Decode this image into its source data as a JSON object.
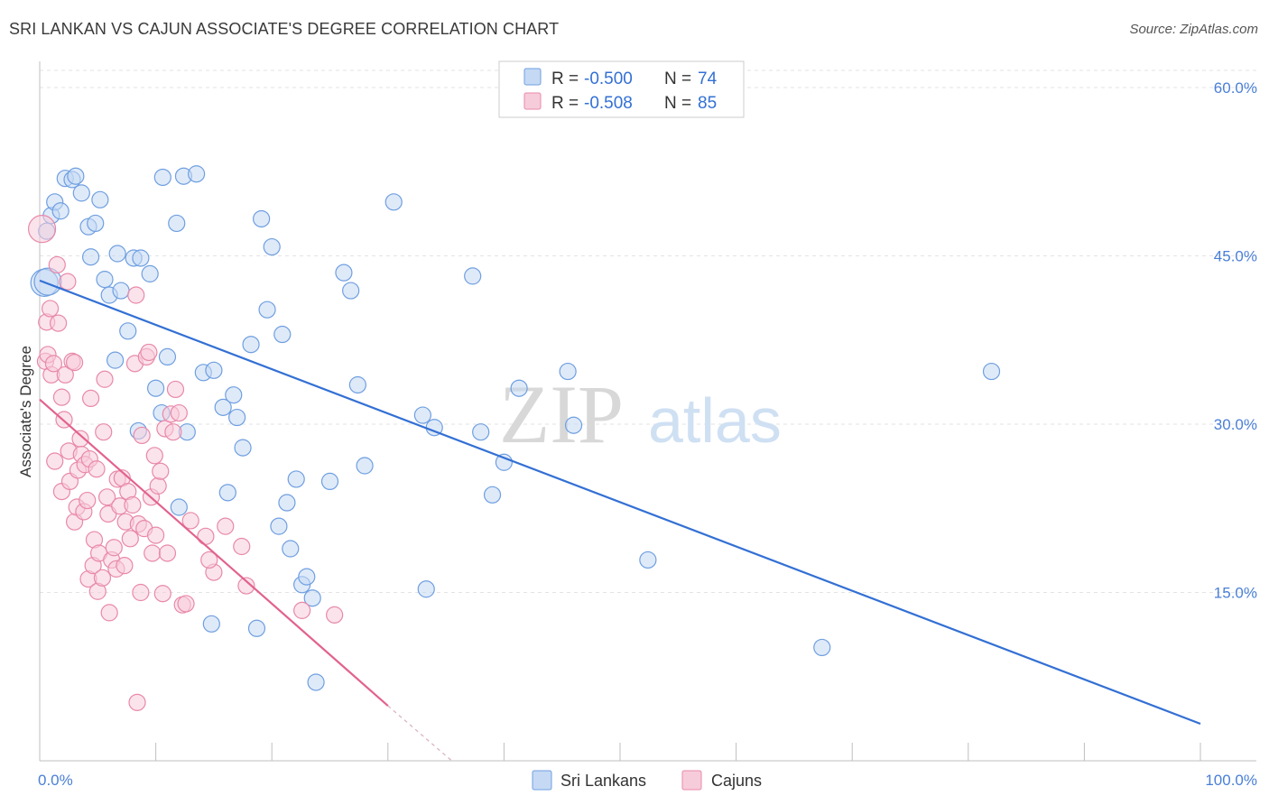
{
  "title": "SRI LANKAN VS CAJUN ASSOCIATE'S DEGREE CORRELATION CHART",
  "source": "Source: ZipAtlas.com",
  "watermark": {
    "zip": "ZIP",
    "atlas": "atlas"
  },
  "chart_data": {
    "type": "scatter",
    "title": "SRI LANKAN VS CAJUN ASSOCIATE'S DEGREE CORRELATION CHART",
    "xlabel": "",
    "ylabel": "Associate's Degree",
    "xlim": [
      0,
      100
    ],
    "ylim": [
      0,
      63
    ],
    "x_tick_labels": [
      {
        "value": 0,
        "label": "0.0%"
      },
      {
        "value": 100,
        "label": "100.0%"
      }
    ],
    "y_tick_labels": [
      {
        "value": 15,
        "label": "15.0%"
      },
      {
        "value": 30,
        "label": "30.0%"
      },
      {
        "value": 45,
        "label": "45.0%"
      },
      {
        "value": 60,
        "label": "60.0%"
      }
    ],
    "grid": true,
    "legend_position": "top-center",
    "series": [
      {
        "name": "Sri Lankans",
        "color": "#6f9fe0",
        "fill": "#c5d9f4",
        "line_color": "#3370d4",
        "r_label": "R =",
        "r_value": "-0.500",
        "n_label": "N =",
        "n_value": "74",
        "trend": {
          "x0": 0,
          "y0": 42.8,
          "x1": 100,
          "y1": 3.3
        },
        "points": [
          [
            0.4,
            42.6
          ],
          [
            0.6,
            47.2
          ],
          [
            1.0,
            48.6
          ],
          [
            1.3,
            49.8
          ],
          [
            1.8,
            49.0
          ],
          [
            2.2,
            51.9
          ],
          [
            2.8,
            51.8
          ],
          [
            3.1,
            52.1
          ],
          [
            3.6,
            50.6
          ],
          [
            4.2,
            47.6
          ],
          [
            4.4,
            44.9
          ],
          [
            4.8,
            47.9
          ],
          [
            5.2,
            50.0
          ],
          [
            5.6,
            42.9
          ],
          [
            6.0,
            41.5
          ],
          [
            6.5,
            35.7
          ],
          [
            6.7,
            45.2
          ],
          [
            7.0,
            41.9
          ],
          [
            7.6,
            38.3
          ],
          [
            8.1,
            44.8
          ],
          [
            8.7,
            44.8
          ],
          [
            8.5,
            29.4
          ],
          [
            9.5,
            43.4
          ],
          [
            10.0,
            33.2
          ],
          [
            10.5,
            31.0
          ],
          [
            10.6,
            52.0
          ],
          [
            11.0,
            36.0
          ],
          [
            11.8,
            47.9
          ],
          [
            12.0,
            22.6
          ],
          [
            12.4,
            52.1
          ],
          [
            12.7,
            29.3
          ],
          [
            13.5,
            52.3
          ],
          [
            14.1,
            34.6
          ],
          [
            14.8,
            12.2
          ],
          [
            15.0,
            34.8
          ],
          [
            15.8,
            31.5
          ],
          [
            16.2,
            23.9
          ],
          [
            16.7,
            32.6
          ],
          [
            17.0,
            30.6
          ],
          [
            17.5,
            27.9
          ],
          [
            18.2,
            37.1
          ],
          [
            18.7,
            11.8
          ],
          [
            19.1,
            48.3
          ],
          [
            19.6,
            40.2
          ],
          [
            20.0,
            45.8
          ],
          [
            20.6,
            20.9
          ],
          [
            20.9,
            38.0
          ],
          [
            21.3,
            23.0
          ],
          [
            21.6,
            18.9
          ],
          [
            22.1,
            25.1
          ],
          [
            22.6,
            15.7
          ],
          [
            23.0,
            16.4
          ],
          [
            23.5,
            14.5
          ],
          [
            23.8,
            7.0
          ],
          [
            25.0,
            24.9
          ],
          [
            26.2,
            43.5
          ],
          [
            26.8,
            41.9
          ],
          [
            27.4,
            33.5
          ],
          [
            28.0,
            26.3
          ],
          [
            30.5,
            49.8
          ],
          [
            33.0,
            30.8
          ],
          [
            33.3,
            15.3
          ],
          [
            34.0,
            29.7
          ],
          [
            37.3,
            43.2
          ],
          [
            38.0,
            29.3
          ],
          [
            39.0,
            23.7
          ],
          [
            40.0,
            26.6
          ],
          [
            41.3,
            33.2
          ],
          [
            45.5,
            34.7
          ],
          [
            46.0,
            29.9
          ],
          [
            52.4,
            17.9
          ],
          [
            67.4,
            10.1
          ],
          [
            82.0,
            34.7
          ],
          [
            0.7,
            42.7
          ]
        ]
      },
      {
        "name": "Cajuns",
        "color": "#e889a8",
        "fill": "#f7ccda",
        "line_color": "#e2628f",
        "r_label": "R =",
        "r_value": "-0.508",
        "n_label": "N =",
        "n_value": "85",
        "trend": {
          "x0": 0,
          "y0": 32.2,
          "x1": 30,
          "y1": 4.9
        },
        "trend_dash": {
          "x0": 30,
          "y0": 4.9,
          "x1": 35.5,
          "y1": 0
        },
        "points": [
          [
            0.2,
            47.4
          ],
          [
            0.5,
            35.6
          ],
          [
            0.6,
            39.1
          ],
          [
            0.7,
            36.2
          ],
          [
            0.9,
            40.3
          ],
          [
            1.0,
            34.4
          ],
          [
            1.2,
            35.4
          ],
          [
            1.3,
            26.7
          ],
          [
            1.5,
            44.2
          ],
          [
            1.6,
            39.0
          ],
          [
            1.9,
            24.0
          ],
          [
            1.9,
            32.4
          ],
          [
            2.1,
            30.4
          ],
          [
            2.2,
            34.4
          ],
          [
            2.4,
            42.7
          ],
          [
            2.5,
            27.6
          ],
          [
            2.6,
            24.9
          ],
          [
            2.8,
            35.6
          ],
          [
            3.0,
            35.5
          ],
          [
            3.0,
            21.3
          ],
          [
            3.2,
            22.6
          ],
          [
            3.3,
            25.9
          ],
          [
            3.5,
            28.7
          ],
          [
            3.6,
            27.3
          ],
          [
            3.8,
            22.2
          ],
          [
            3.9,
            26.4
          ],
          [
            4.1,
            23.2
          ],
          [
            4.2,
            16.2
          ],
          [
            4.3,
            26.9
          ],
          [
            4.4,
            32.3
          ],
          [
            4.6,
            17.4
          ],
          [
            4.7,
            19.7
          ],
          [
            4.9,
            26.0
          ],
          [
            5.0,
            15.1
          ],
          [
            5.1,
            18.5
          ],
          [
            5.4,
            16.3
          ],
          [
            5.5,
            29.3
          ],
          [
            5.6,
            34.0
          ],
          [
            5.8,
            23.5
          ],
          [
            5.9,
            22.0
          ],
          [
            6.0,
            13.2
          ],
          [
            6.2,
            17.9
          ],
          [
            6.4,
            19.0
          ],
          [
            6.6,
            17.1
          ],
          [
            6.7,
            25.1
          ],
          [
            6.9,
            22.7
          ],
          [
            7.1,
            25.2
          ],
          [
            7.4,
            21.3
          ],
          [
            7.6,
            24.0
          ],
          [
            7.8,
            19.8
          ],
          [
            8.0,
            22.8
          ],
          [
            8.2,
            35.4
          ],
          [
            8.3,
            41.5
          ],
          [
            8.4,
            5.2
          ],
          [
            8.5,
            21.1
          ],
          [
            8.7,
            15.0
          ],
          [
            8.8,
            29.0
          ],
          [
            9.0,
            20.7
          ],
          [
            9.2,
            36.0
          ],
          [
            9.4,
            36.4
          ],
          [
            9.6,
            23.5
          ],
          [
            9.7,
            18.5
          ],
          [
            9.9,
            27.2
          ],
          [
            10.0,
            20.1
          ],
          [
            10.2,
            24.5
          ],
          [
            10.4,
            25.8
          ],
          [
            10.6,
            14.9
          ],
          [
            10.8,
            29.6
          ],
          [
            11.0,
            18.5
          ],
          [
            11.3,
            30.9
          ],
          [
            11.5,
            29.3
          ],
          [
            11.7,
            33.1
          ],
          [
            12.0,
            31.0
          ],
          [
            12.3,
            13.9
          ],
          [
            12.6,
            14.0
          ],
          [
            13.0,
            21.4
          ],
          [
            14.3,
            20.0
          ],
          [
            15.0,
            16.8
          ],
          [
            16.0,
            20.9
          ],
          [
            17.4,
            19.1
          ],
          [
            17.8,
            15.6
          ],
          [
            22.6,
            13.4
          ],
          [
            25.4,
            13.0
          ],
          [
            14.6,
            17.9
          ],
          [
            7.3,
            17.4
          ]
        ]
      }
    ]
  }
}
